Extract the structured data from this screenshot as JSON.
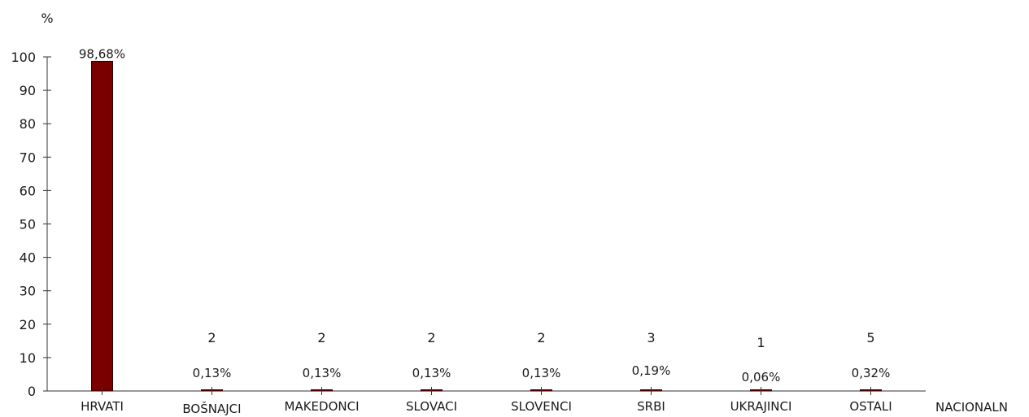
{
  "chart_data": {
    "type": "bar",
    "ylabel": "%",
    "xlabel": "NACIONALN",
    "ylim": [
      0,
      100
    ],
    "yticks": [
      0,
      10,
      20,
      30,
      40,
      50,
      60,
      70,
      80,
      90,
      100
    ],
    "categories": [
      "HRVATI",
      "BOŠNAJCI",
      "MAKEDONCI",
      "SLOVACI",
      "SLOVENCI",
      "SRBI",
      "UKRAJINCI",
      "OSTALI"
    ],
    "values": [
      98.68,
      0.13,
      0.13,
      0.13,
      0.13,
      0.19,
      0.06,
      0.32
    ],
    "value_labels": [
      "98,68%",
      "0,13%",
      "0,13%",
      "0,13%",
      "0,13%",
      "0,19%",
      "0,06%",
      "0,32%"
    ],
    "count_labels": [
      "",
      "2",
      "2",
      "2",
      "2",
      "3",
      "1",
      "5"
    ],
    "bar_color": "#7a0000",
    "grid": false
  }
}
